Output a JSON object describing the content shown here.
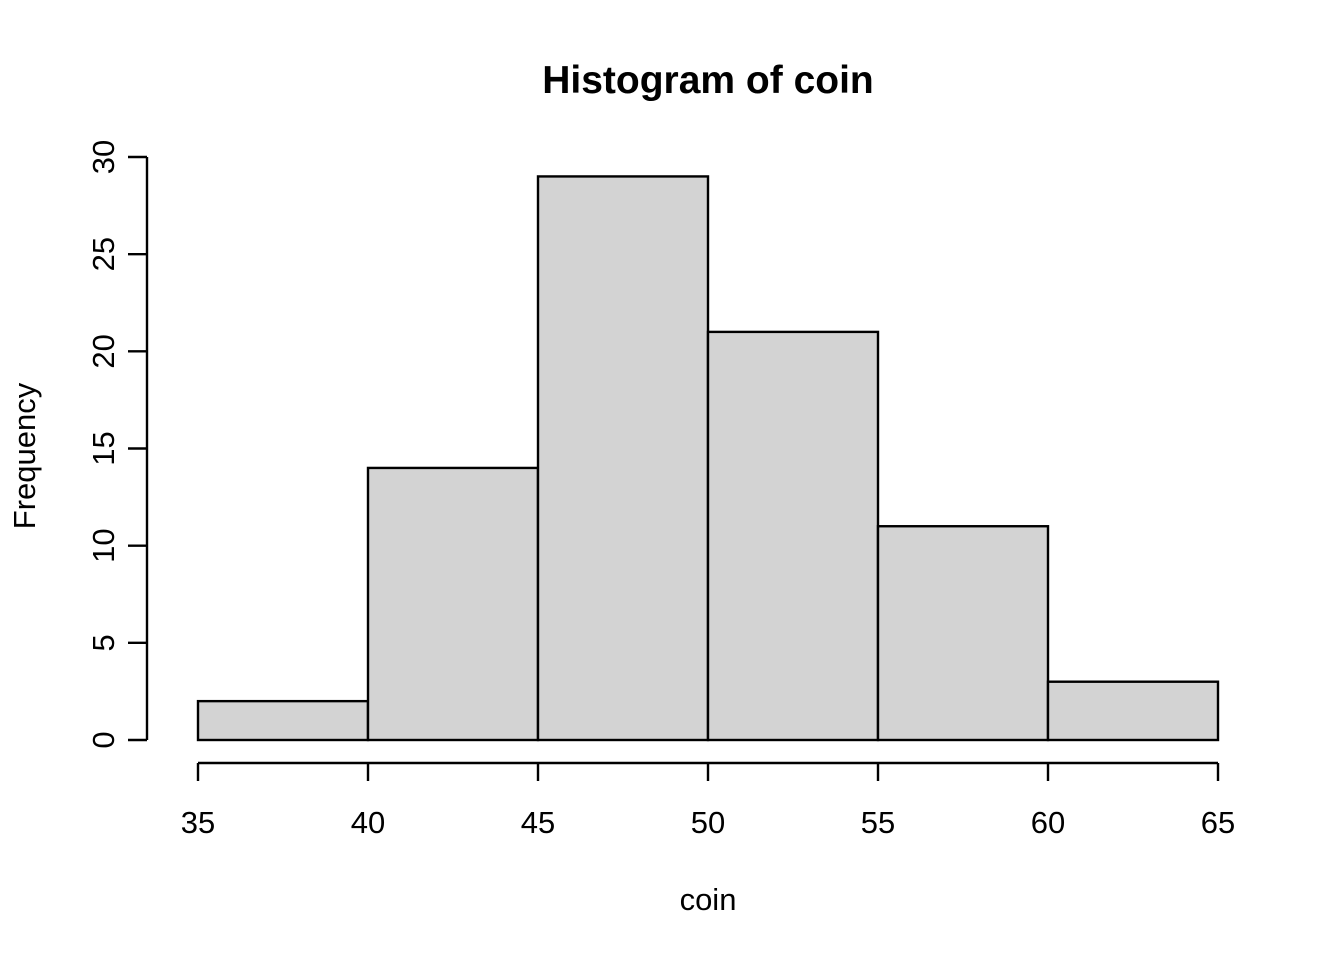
{
  "chart_data": {
    "type": "bar",
    "subtype": "histogram",
    "title": "Histogram of coin",
    "xlabel": "coin",
    "ylabel": "Frequency",
    "bin_edges": [
      35,
      40,
      45,
      50,
      55,
      60,
      65
    ],
    "counts": [
      2,
      14,
      29,
      21,
      11,
      3
    ],
    "x_ticks": [
      35,
      40,
      45,
      50,
      55,
      60,
      65
    ],
    "y_ticks": [
      0,
      5,
      10,
      15,
      20,
      25,
      30
    ],
    "xlim": [
      35,
      65
    ],
    "ylim": [
      0,
      30
    ],
    "grid": false,
    "legend": false,
    "bar_fill_color": "#d3d3d3",
    "bar_stroke_color": "#000000",
    "axis_color": "#000000",
    "background_color": "#ffffff"
  }
}
